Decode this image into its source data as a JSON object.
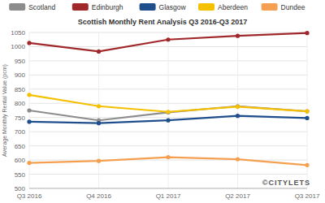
{
  "chart_data": {
    "type": "line",
    "title": "Scottish Monthly Rent Analysis Q3 2016-Q3 2017",
    "y_label": "Average Monthly Rental Value (pcm)",
    "annotation": "©CITYLETS",
    "categories": [
      "Q3 2016",
      "Q4 2016",
      "Q1 2017",
      "Q2 2017",
      "Q3 2017"
    ],
    "series": [
      {
        "name": "Scotland",
        "color": "#8c8c8c",
        "values": [
          775,
          740,
          768,
          790,
          772
        ]
      },
      {
        "name": "Edinburgh",
        "color": "#a0282a",
        "values": [
          1013,
          983,
          1025,
          1038,
          1048
        ]
      },
      {
        "name": "Glasgow",
        "color": "#1f4e8c",
        "values": [
          735,
          730,
          740,
          756,
          748
        ]
      },
      {
        "name": "Aberdeen",
        "color": "#f5c000",
        "values": [
          830,
          790,
          770,
          788,
          772
        ]
      },
      {
        "name": "Dundee",
        "color": "#f5a050",
        "values": [
          590,
          597,
          610,
          603,
          582
        ]
      }
    ],
    "ylim": [
      500,
      1050
    ],
    "yticks": [
      500,
      550,
      600,
      650,
      700,
      750,
      800,
      850,
      900,
      950,
      1000,
      1050
    ],
    "grid": true,
    "legend": "top",
    "marker": "circle",
    "line_style": "solid"
  }
}
